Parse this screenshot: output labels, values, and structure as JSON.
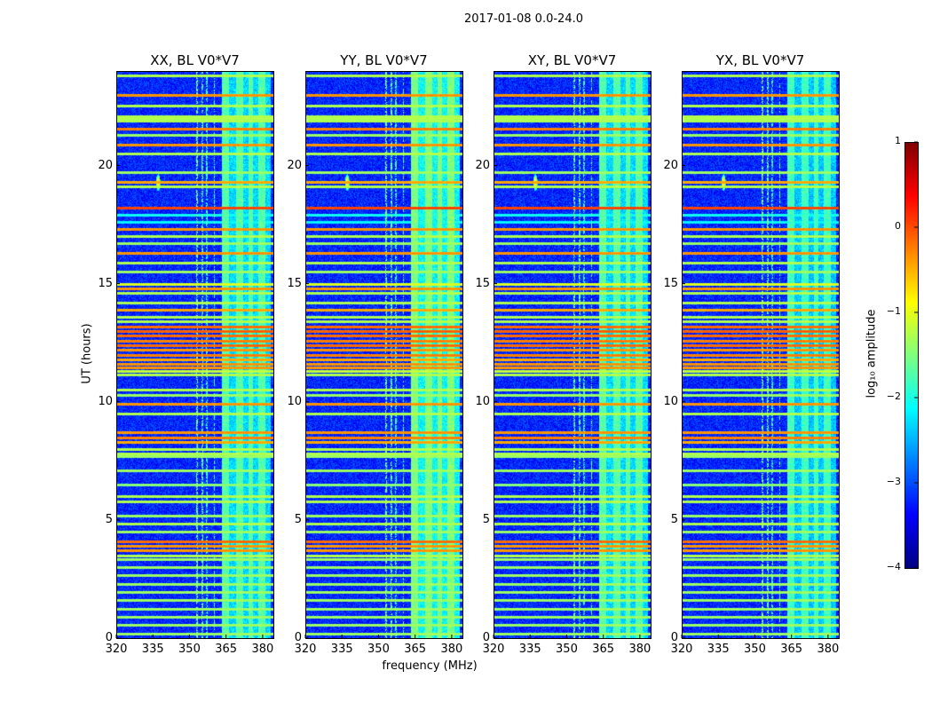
{
  "chart_data": {
    "type": "heatmap",
    "title": "2017-01-08 0.0-24.0",
    "xlabel": "frequency (MHz)",
    "ylabel": "UT (hours)",
    "xlim": [
      320,
      384.4
    ],
    "ylim": [
      0,
      24
    ],
    "xticks": [
      "320",
      "335",
      "350",
      "365",
      "380"
    ],
    "yticks": [
      "0",
      "5",
      "10",
      "15",
      "20"
    ],
    "panels": [
      {
        "title": "XX, BL V0*V7",
        "band_boost": 0.0
      },
      {
        "title": "YY, BL V0*V7",
        "band_boost": 0.2
      },
      {
        "title": "XY, BL V0*V7",
        "band_boost": 0.0
      },
      {
        "title": "YX, BL V0*V7",
        "band_boost": -0.1
      }
    ],
    "colorbar": {
      "label": "log₁₀ amplitude",
      "range": [
        -4,
        1
      ],
      "ticks": [
        "1",
        "0",
        "−1",
        "−2",
        "−3",
        "−4"
      ],
      "colormap": "jet"
    },
    "background_level": -3.2,
    "rfi_band": {
      "freq_range": [
        363,
        383
      ],
      "level": -2.3,
      "columns": [
        [
          363,
          366
        ],
        [
          369,
          372
        ],
        [
          374,
          376
        ],
        [
          378,
          381
        ]
      ],
      "column_level": -1.7
    },
    "point_source": {
      "freq": 337,
      "time": 19.3,
      "peak": 0.0
    },
    "time_rfi_lines": [
      [
        23.8,
        -1.2
      ],
      [
        23.0,
        -0.3
      ],
      [
        22.55,
        -1.2
      ],
      [
        22.0,
        -1.2
      ],
      [
        21.9,
        -1.2
      ],
      [
        22.1,
        -1.2
      ],
      [
        21.55,
        -0.2
      ],
      [
        21.3,
        -1.3
      ],
      [
        20.9,
        -0.3
      ],
      [
        20.5,
        -1.2
      ],
      [
        19.7,
        -1.3
      ],
      [
        19.3,
        -0.4
      ],
      [
        19.1,
        -1.2
      ],
      [
        18.2,
        0.1
      ],
      [
        17.9,
        -2.0
      ],
      [
        17.6,
        -2.1
      ],
      [
        17.3,
        -0.3
      ],
      [
        17.0,
        -1.2
      ],
      [
        16.7,
        -1.3
      ],
      [
        16.3,
        -0.3
      ],
      [
        15.9,
        -1.2
      ],
      [
        15.5,
        -1.3
      ],
      [
        15.0,
        -1.0
      ],
      [
        14.8,
        -0.3
      ],
      [
        14.6,
        -1.2
      ],
      [
        14.2,
        -1.2
      ],
      [
        13.9,
        -0.4
      ],
      [
        13.6,
        -1.2
      ],
      [
        13.4,
        -1.2
      ],
      [
        13.2,
        -0.1
      ],
      [
        13.0,
        -0.05
      ],
      [
        12.8,
        -0.1
      ],
      [
        12.6,
        -0.2
      ],
      [
        12.4,
        -0.1
      ],
      [
        12.2,
        -0.3
      ],
      [
        12.0,
        -0.2
      ],
      [
        11.8,
        -0.4
      ],
      [
        11.6,
        -0.3
      ],
      [
        11.45,
        -0.3
      ],
      [
        11.3,
        -1.1
      ],
      [
        11.15,
        -1.2
      ],
      [
        10.5,
        -1.2
      ],
      [
        10.3,
        -1.3
      ],
      [
        9.9,
        -0.3
      ],
      [
        9.5,
        -1.2
      ],
      [
        8.7,
        -0.3
      ],
      [
        8.5,
        -0.2
      ],
      [
        8.3,
        -0.4
      ],
      [
        8.0,
        -1.2
      ],
      [
        7.8,
        -1.2
      ],
      [
        7.7,
        -1.3
      ],
      [
        7.1,
        -1.3
      ],
      [
        6.5,
        -1.4
      ],
      [
        6.0,
        -1.2
      ],
      [
        5.8,
        -1.2
      ],
      [
        5.2,
        -1.3
      ],
      [
        4.85,
        -1.2
      ],
      [
        4.5,
        -1.3
      ],
      [
        4.1,
        -0.1
      ],
      [
        3.9,
        -0.3
      ],
      [
        3.7,
        -0.3
      ],
      [
        3.5,
        -1.2
      ],
      [
        3.35,
        -1.3
      ],
      [
        3.0,
        -1.3
      ],
      [
        2.65,
        -1.3
      ],
      [
        2.3,
        -1.3
      ],
      [
        1.95,
        -1.3
      ],
      [
        1.6,
        -1.3
      ],
      [
        1.25,
        -1.3
      ],
      [
        0.9,
        -1.3
      ],
      [
        0.55,
        -1.3
      ],
      [
        0.2,
        -1.3
      ]
    ],
    "freq_rfi_lines": [
      [
        353,
        -1.5
      ],
      [
        355,
        -1.6
      ],
      [
        357,
        -1.8
      ],
      [
        360,
        -1.6
      ]
    ]
  }
}
